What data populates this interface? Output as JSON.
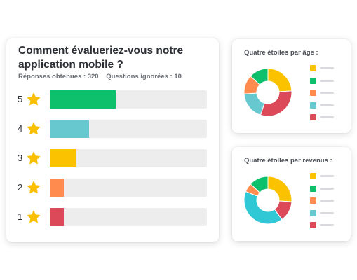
{
  "colors": {
    "green": "#0ebf6b",
    "teal": "#67c8cf",
    "yellow": "#fbc200",
    "orange": "#ff8b4f",
    "red": "#dc4a5a",
    "cyan": "#30c8d5",
    "star": "#fbbf00",
    "track": "#ededee"
  },
  "main": {
    "title": "Comment évalueriez-vous notre application mobile ?",
    "responses": "Réponses obtenues : 320",
    "skipped": "Questions ignorées : 10",
    "ratings": [
      {
        "label": "5",
        "fraction": 0.42,
        "color": "green",
        "icon": "star-icon"
      },
      {
        "label": "4",
        "fraction": 0.25,
        "color": "teal",
        "icon": "star-icon"
      },
      {
        "label": "3",
        "fraction": 0.17,
        "color": "yellow",
        "icon": "star-icon"
      },
      {
        "label": "2",
        "fraction": 0.09,
        "color": "orange",
        "icon": "star-icon"
      },
      {
        "label": "1",
        "fraction": 0.09,
        "color": "red",
        "icon": "star-icon"
      }
    ]
  },
  "age_panel": {
    "title": "Quatre étoiles par âge :",
    "segments": [
      {
        "color": "yellow",
        "fraction": 0.24
      },
      {
        "color": "red",
        "fraction": 0.31
      },
      {
        "color": "teal",
        "fraction": 0.19
      },
      {
        "color": "orange",
        "fraction": 0.13
      },
      {
        "color": "green",
        "fraction": 0.13
      }
    ],
    "legend": [
      "yellow",
      "green",
      "orange",
      "teal",
      "red"
    ]
  },
  "revenue_panel": {
    "title": "Quatre étoiles par revenus :",
    "segments": [
      {
        "color": "yellow",
        "fraction": 0.26
      },
      {
        "color": "red",
        "fraction": 0.14
      },
      {
        "color": "cyan",
        "fraction": 0.41
      },
      {
        "color": "orange",
        "fraction": 0.06
      },
      {
        "color": "green",
        "fraction": 0.13
      }
    ],
    "legend": [
      "yellow",
      "green",
      "orange",
      "teal",
      "red"
    ]
  }
}
